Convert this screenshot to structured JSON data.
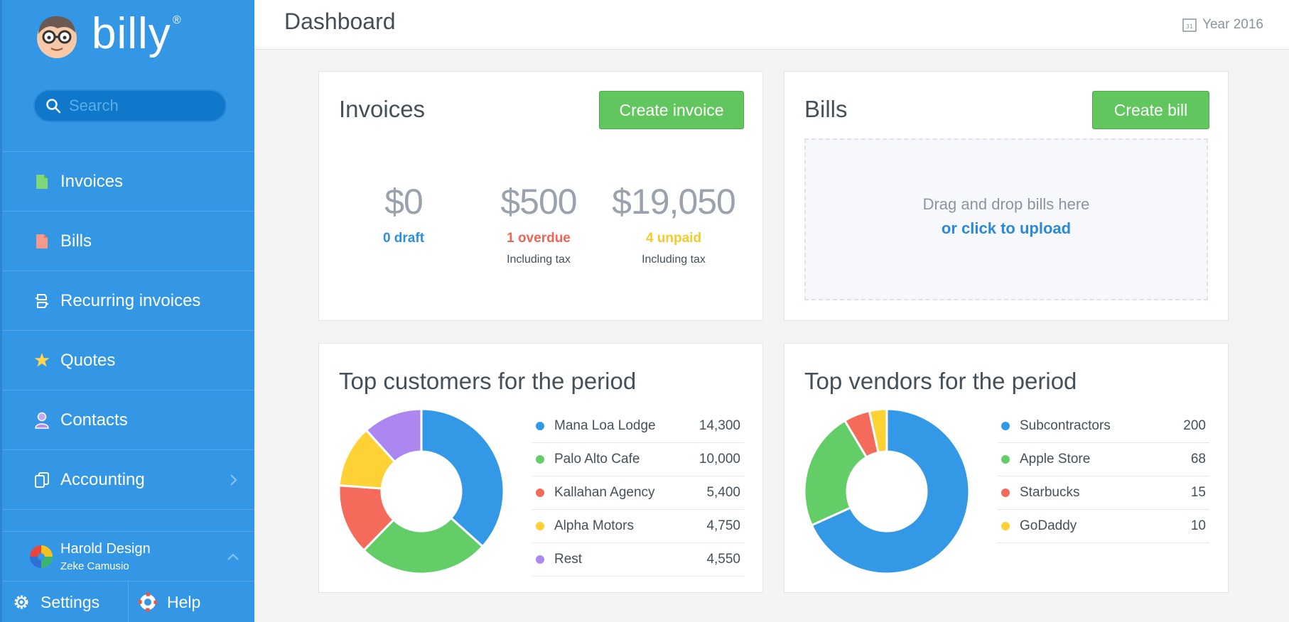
{
  "brand": {
    "name": "billy",
    "reg": "®"
  },
  "search": {
    "placeholder": "Search"
  },
  "nav": {
    "items": [
      {
        "label": "Invoices",
        "icon": "invoice-doc-icon",
        "color": "#7fd77a"
      },
      {
        "label": "Bills",
        "icon": "bill-doc-icon",
        "color": "#f39a8c"
      },
      {
        "label": "Recurring invoices",
        "icon": "recurring-icon",
        "color": "#ffffff"
      },
      {
        "label": "Quotes",
        "icon": "star-icon",
        "color": "#ffd84a"
      },
      {
        "label": "Contacts",
        "icon": "person-icon",
        "color": "#b98be8"
      },
      {
        "label": "Accounting",
        "icon": "ledger-icon",
        "color": "#ffffff"
      }
    ]
  },
  "account": {
    "name": "Harold Design",
    "user": "Zeke Camusio"
  },
  "footer": {
    "settings": "Settings",
    "help": "Help"
  },
  "header": {
    "title": "Dashboard",
    "period": "Year 2016",
    "calendar_day": "31"
  },
  "invoices": {
    "title": "Invoices",
    "create_label": "Create invoice",
    "stats": [
      {
        "amount": "$0",
        "label": "0 draft",
        "sub": "",
        "color": "#2d8fd8"
      },
      {
        "amount": "$500",
        "label": "1 overdue",
        "sub": "Including tax",
        "color": "#ee6655"
      },
      {
        "amount": "$19,050",
        "label": "4 unpaid",
        "sub": "Including tax",
        "color": "#f6ca2c"
      }
    ]
  },
  "bills": {
    "title": "Bills",
    "create_label": "Create bill",
    "drop_text": "Drag and drop bills here",
    "drop_link": "or click to upload"
  },
  "customers": {
    "title": "Top customers for the period",
    "chart_data": {
      "type": "pie",
      "variant": "donut",
      "categories": [
        "Mana Loa Lodge",
        "Palo Alto Cafe",
        "Kallahan Agency",
        "Alpha Motors",
        "Rest"
      ],
      "values": [
        14300,
        10000,
        5400,
        4750,
        4550
      ],
      "display_values": [
        "14,300",
        "10,000",
        "5,400",
        "4,750",
        "4,550"
      ],
      "colors": [
        "#3399e6",
        "#63ce68",
        "#f56b5b",
        "#fed134",
        "#ad87f0"
      ]
    }
  },
  "vendors": {
    "title": "Top vendors for the period",
    "chart_data": {
      "type": "pie",
      "variant": "donut",
      "categories": [
        "Subcontractors",
        "Apple Store",
        "Starbucks",
        "GoDaddy"
      ],
      "values": [
        200,
        68,
        15,
        10
      ],
      "display_values": [
        "200",
        "68",
        "15",
        "10"
      ],
      "colors": [
        "#3399e6",
        "#63ce68",
        "#f56b5b",
        "#fed134"
      ]
    }
  }
}
